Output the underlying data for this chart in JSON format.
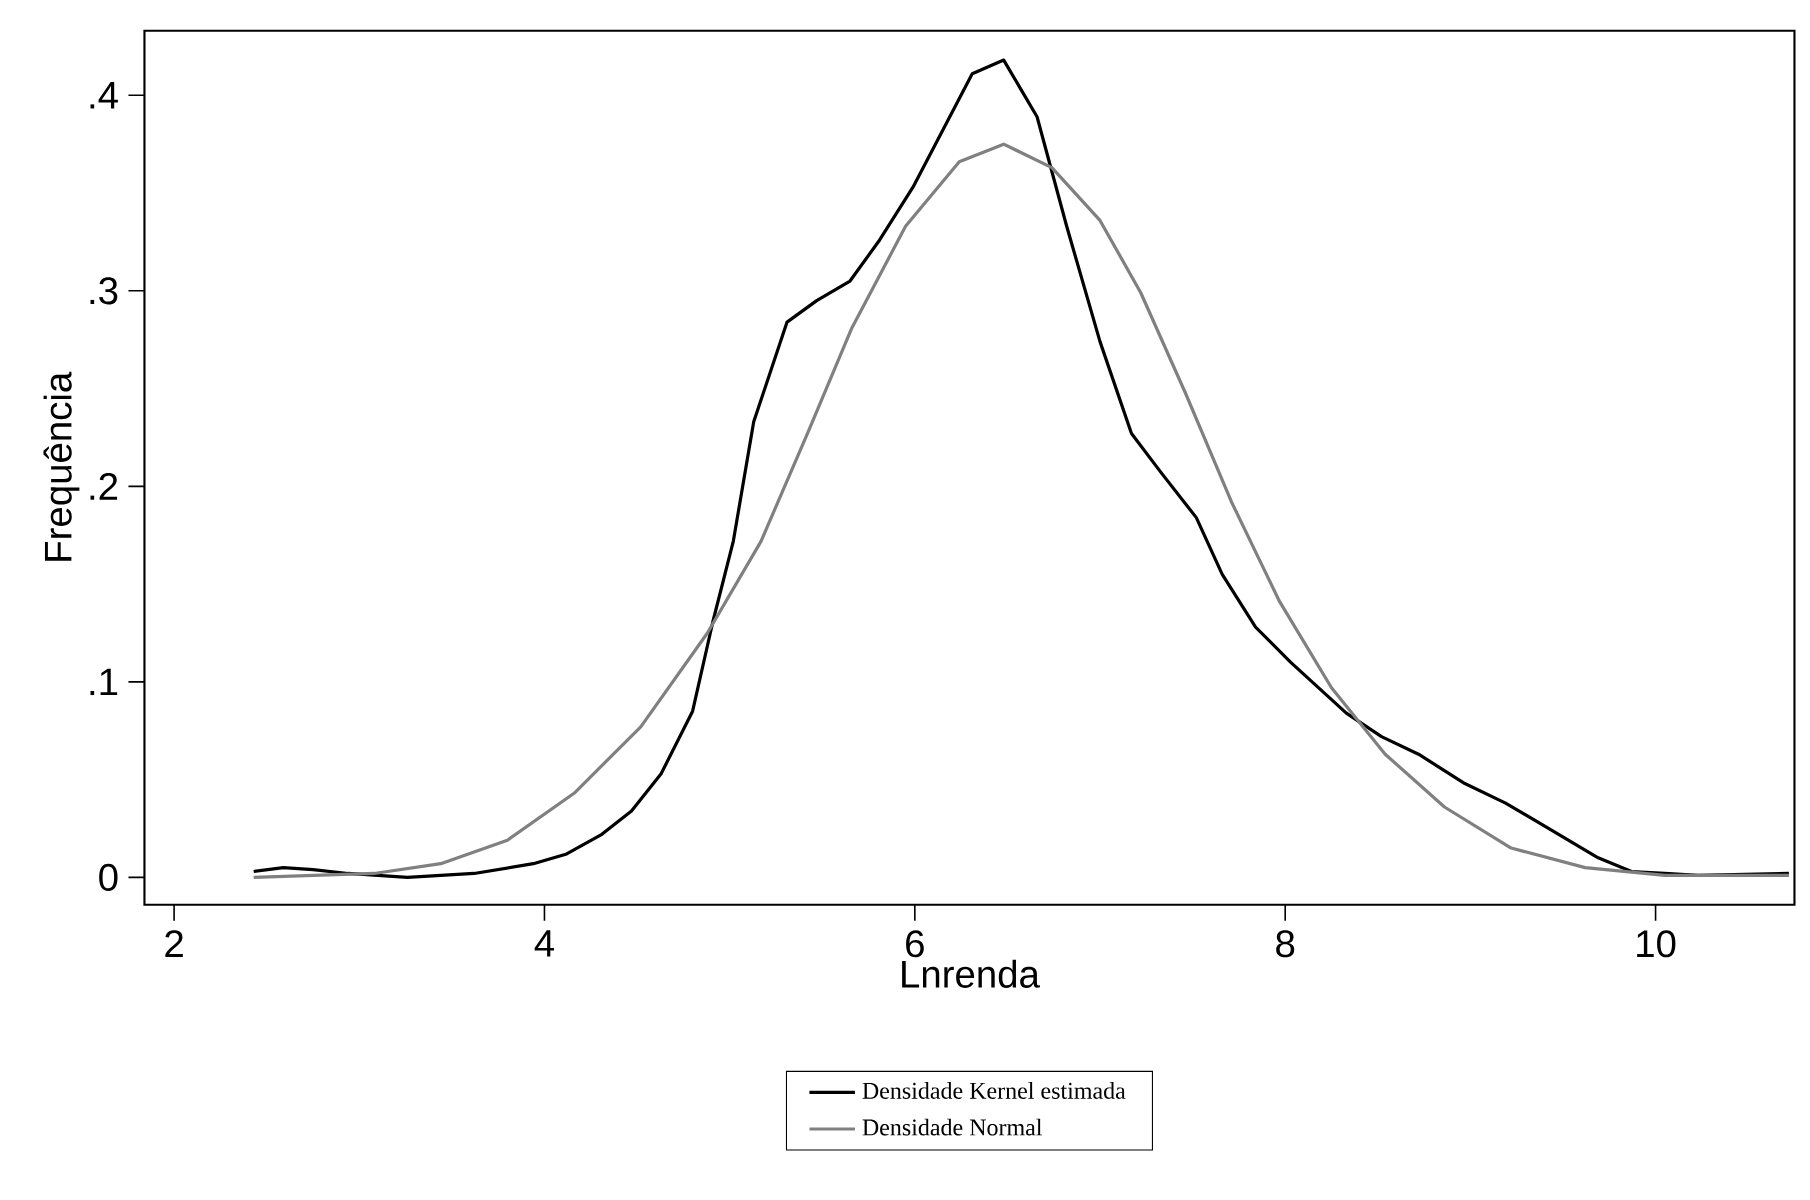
{
  "chart_data": {
    "type": "line",
    "xlabel": "Lnrenda",
    "ylabel": "Frequência",
    "xlim": [
      1.84,
      10.75
    ],
    "ylim": [
      -0.014,
      0.433
    ],
    "xticks": [
      2,
      4,
      6,
      8,
      10
    ],
    "yticks": [
      0,
      {
        "value": 0.1,
        "label": ".1"
      },
      {
        "value": 0.2,
        "label": ".2"
      },
      {
        "value": 0.3,
        "label": ".3"
      },
      {
        "value": 0.4,
        "label": ".4"
      }
    ],
    "legend": "bottom",
    "grid": false,
    "marker": "none",
    "line_style": "solid",
    "series": [
      {
        "name": "Densidade Kernel estimada",
        "color": "#000000",
        "x": [
          2.43,
          2.59,
          2.75,
          2.94,
          3.26,
          3.62,
          3.94,
          4.12,
          4.31,
          4.47,
          4.63,
          4.8,
          4.91,
          5.02,
          5.13,
          5.31,
          5.47,
          5.65,
          5.81,
          5.99,
          6.15,
          6.31,
          6.48,
          6.66,
          6.82,
          7.0,
          7.17,
          7.33,
          7.52,
          7.66,
          7.84,
          8.03,
          8.33,
          8.52,
          8.72,
          8.97,
          9.19,
          9.44,
          9.69,
          9.87,
          10.05,
          10.23,
          10.72
        ],
        "values": [
          0.003,
          0.005,
          0.004,
          0.002,
          0,
          0.002,
          0.007,
          0.012,
          0.022,
          0.034,
          0.053,
          0.085,
          0.131,
          0.172,
          0.233,
          0.284,
          0.295,
          0.305,
          0.326,
          0.353,
          0.382,
          0.411,
          0.418,
          0.389,
          0.333,
          0.274,
          0.227,
          0.207,
          0.184,
          0.155,
          0.128,
          0.11,
          0.084,
          0.072,
          0.063,
          0.048,
          0.038,
          0.024,
          0.01,
          0.003,
          0.002,
          0.001,
          0.002
        ]
      },
      {
        "name": "Densidade Normal",
        "color": "#808080",
        "x": [
          2.43,
          3.08,
          3.44,
          3.8,
          4.16,
          4.52,
          4.88,
          5.17,
          5.42,
          5.66,
          5.95,
          6.24,
          6.48,
          6.74,
          7.0,
          7.22,
          7.46,
          7.71,
          7.97,
          8.25,
          8.54,
          8.86,
          9.22,
          9.62,
          10.05,
          10.72
        ],
        "values": [
          0,
          0.002,
          0.007,
          0.019,
          0.043,
          0.077,
          0.125,
          0.172,
          0.227,
          0.281,
          0.333,
          0.366,
          0.375,
          0.363,
          0.336,
          0.299,
          0.248,
          0.192,
          0.141,
          0.097,
          0.063,
          0.036,
          0.015,
          0.005,
          0.001,
          0.001
        ]
      }
    ]
  }
}
